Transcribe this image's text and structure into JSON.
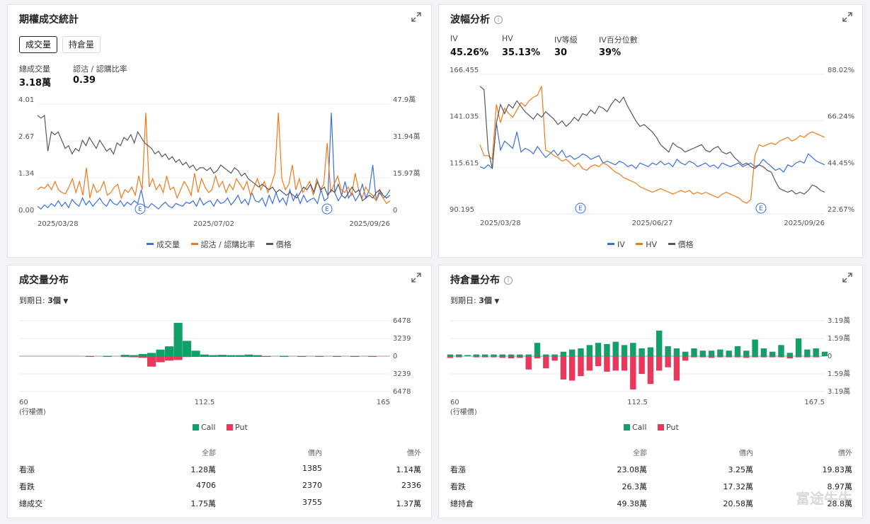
{
  "panels": {
    "stats": {
      "title": "期權成交統計",
      "tabs": [
        "成交量",
        "持倉量"
      ],
      "active_tab": 0,
      "stat1_label": "總成交量",
      "stat1_value": "3.18萬",
      "stat2_label": "認沽 / 認購比率",
      "stat2_value": "0.39",
      "legend": [
        "成交量",
        "認沽 / 認購比率",
        "價格"
      ]
    },
    "vol": {
      "title": "波幅分析",
      "stats": [
        {
          "label": "IV",
          "value": "45.26%"
        },
        {
          "label": "HV",
          "value": "35.13%"
        },
        {
          "label": "IV等級",
          "value": "30"
        },
        {
          "label": "IV百分位數",
          "value": "39%"
        }
      ],
      "legend": [
        "IV",
        "HV",
        "價格"
      ]
    },
    "volume_dist": {
      "title": "成交量分布",
      "expiry_label": "到期日:",
      "expiry_value": "3個",
      "legend": [
        "Call",
        "Put"
      ],
      "table": {
        "headers": [
          "",
          "全部",
          "價內",
          "價外"
        ],
        "rows": [
          [
            "看漲",
            "1.28萬",
            "1385",
            "1.14萬"
          ],
          [
            "看跌",
            "4706",
            "2370",
            "2336"
          ],
          [
            "總成交",
            "1.75萬",
            "3755",
            "1.37萬"
          ]
        ]
      }
    },
    "oi_dist": {
      "title": "持倉量分布",
      "expiry_label": "到期日:",
      "expiry_value": "3個",
      "legend": [
        "Call",
        "Put"
      ],
      "table": {
        "headers": [
          "",
          "全部",
          "價內",
          "價外"
        ],
        "rows": [
          [
            "看漲",
            "23.08萬",
            "3.25萬",
            "19.83萬"
          ],
          [
            "看跌",
            "26.3萬",
            "17.32萬",
            "8.97萬"
          ],
          [
            "總持倉",
            "49.38萬",
            "20.58萬",
            "28.8萬"
          ]
        ]
      }
    }
  },
  "watermark": "富途牛牛",
  "colors": {
    "blue": "#3a6fe0",
    "orange": "#ef7a1a",
    "gray": "#55585f",
    "call": "#12a06a",
    "put": "#e8385b"
  },
  "chart_data": [
    {
      "type": "line",
      "title": "期權成交統計",
      "x_ticks": [
        "2025/03/28",
        "2025/07/02",
        "2025/09/26"
      ],
      "y_left_ticks": [
        "4.01",
        "2.67",
        "1.34",
        "0.00"
      ],
      "y_right_ticks": [
        "47.9萬",
        "31.94萬",
        "15.97萬",
        "0"
      ],
      "ylim_left": [
        0,
        4.01
      ],
      "events": [
        "E",
        "E",
        "E"
      ],
      "series": [
        {
          "name": "成交量",
          "color": "#3a6fe0",
          "values": [
            0.3,
            0.2,
            0.35,
            0.25,
            0.4,
            0.3,
            0.5,
            0.3,
            0.45,
            0.25,
            0.55,
            0.4,
            0.3,
            0.6,
            0.35,
            0.5,
            0.3,
            0.45,
            0.6,
            0.4,
            0.3,
            0.55,
            0.4,
            0.35,
            0.5,
            0.3,
            0.45,
            0.35,
            0.5,
            0.4,
            0.9,
            0.3,
            0.25,
            0.4,
            0.3,
            0.2,
            0.35,
            0.45,
            0.3,
            0.25,
            0.4,
            0.35,
            0.3,
            0.45,
            0.4,
            0.5,
            0.3,
            0.6,
            0.35,
            0.45,
            0.5,
            0.3,
            0.55,
            0.4,
            0.45,
            0.6,
            0.35,
            0.5,
            0.7,
            0.4,
            0.55,
            0.35,
            0.8,
            0.5,
            0.45,
            0.6,
            0.3,
            0.7,
            0.4,
            0.8,
            0.45,
            0.6,
            0.35,
            0.9,
            0.5,
            0.75,
            0.4,
            0.7,
            0.45,
            0.55,
            0.6,
            0.4,
            0.9,
            0.5,
            0.6,
            3.7,
            0.8,
            0.5,
            0.7,
            1.2,
            0.6,
            0.8,
            0.5,
            0.7,
            1.1,
            0.6,
            0.9,
            1.8,
            0.5,
            0.8,
            0.6,
            0.7,
            0.9
          ]
        },
        {
          "name": "認沽 / 認購比率",
          "color": "#ef7a1a",
          "values": [
            0.9,
            1.0,
            0.95,
            1.1,
            0.9,
            1.2,
            0.9,
            0.8,
            0.75,
            1.0,
            1.3,
            0.8,
            1.2,
            0.7,
            1.7,
            0.6,
            1.1,
            0.8,
            0.9,
            1.2,
            0.7,
            0.8,
            1.0,
            1.1,
            0.6,
            0.9,
            0.8,
            1.0,
            0.7,
            1.4,
            0.9,
            3.7,
            1.0,
            1.3,
            0.9,
            1.1,
            0.8,
            1.4,
            0.9,
            1.0,
            0.6,
            0.9,
            1.2,
            1.0,
            0.7,
            1.5,
            0.8,
            1.3,
            1.0,
            0.8,
            0.9,
            1.4,
            1.0,
            1.2,
            0.8,
            1.1,
            0.9,
            1.3,
            1.1,
            0.9,
            1.2,
            0.7,
            1.0,
            1.3,
            0.9,
            1.2,
            0.8,
            1.1,
            1.5,
            3.7,
            1.3,
            0.9,
            1.1,
            1.8,
            0.9,
            1.3,
            0.8,
            1.0,
            1.2,
            0.7,
            1.3,
            0.9,
            1.1,
            2.6,
            0.8,
            1.1,
            1.4,
            0.9,
            0.8,
            1.0,
            0.7,
            1.5,
            0.9,
            0.6,
            1.0,
            0.8,
            0.7,
            0.5,
            0.9,
            0.6,
            0.4,
            0.5
          ]
        },
        {
          "name": "價格",
          "color": "#55585f",
          "values": [
            3.6,
            3.5,
            3.6,
            2.3,
            3.0,
            2.9,
            3.0,
            2.7,
            2.4,
            2.5,
            2.2,
            2.4,
            2.3,
            2.7,
            2.5,
            2.8,
            2.6,
            2.4,
            2.7,
            2.5,
            2.3,
            2.4,
            2.2,
            2.6,
            2.5,
            2.8,
            2.7,
            2.9,
            2.6,
            3.0,
            2.8,
            2.6,
            2.5,
            2.4,
            2.2,
            2.3,
            2.1,
            2.2,
            2.0,
            2.1,
            1.9,
            2.0,
            1.8,
            1.9,
            1.7,
            1.8,
            1.6,
            1.7,
            1.7,
            1.6,
            1.7,
            1.5,
            1.6,
            1.8,
            1.7,
            1.6,
            1.5,
            1.7,
            1.6,
            1.4,
            1.5,
            1.3,
            1.2,
            1.1,
            1.0,
            1.1,
            1.0,
            0.9,
            1.0,
            0.8,
            0.9,
            0.8,
            0.7,
            0.8,
            0.7,
            0.6,
            0.8,
            1.0,
            0.9,
            1.1,
            0.8,
            1.2,
            0.9,
            1.0,
            0.7,
            0.9,
            0.8,
            1.1,
            0.7,
            0.6,
            0.8,
            1.0,
            0.8,
            0.9,
            0.5,
            0.6,
            0.7,
            0.6,
            0.8,
            0.9,
            0.7,
            0.6,
            0.7
          ]
        }
      ]
    },
    {
      "type": "line",
      "title": "波幅分析",
      "x_ticks": [
        "2025/03/28",
        "2025/06/27",
        "2025/09/26"
      ],
      "y_left_ticks": [
        "166.455",
        "141.035",
        "115.615",
        "90.195"
      ],
      "y_right_ticks": [
        "88.02%",
        "66.24%",
        "44.45%",
        "22.67%"
      ],
      "ylim_left": [
        90.195,
        166.455
      ],
      "events": [
        "E",
        "E"
      ],
      "series": [
        {
          "name": "IV",
          "color": "#3a6fe0",
          "values": [
            116,
            115,
            117,
            115,
            140,
            125,
            130,
            128,
            126,
            135,
            124,
            126,
            125,
            123,
            127,
            124,
            121,
            123,
            125,
            122,
            125,
            121,
            122,
            120,
            121,
            123,
            122,
            120,
            121,
            122,
            118,
            119,
            118,
            117,
            119,
            118,
            116,
            117,
            115,
            118,
            117,
            116,
            118,
            117,
            119,
            117,
            118,
            116,
            120,
            118,
            117,
            119,
            118,
            116,
            117,
            118,
            116,
            117,
            115,
            118,
            117,
            116,
            117,
            118,
            116,
            117,
            118,
            116,
            117,
            120,
            118,
            116,
            114,
            115,
            113,
            117,
            116,
            118,
            119,
            118,
            123,
            121,
            119,
            118,
            117
          ]
        },
        {
          "name": "HV",
          "color": "#ef7a1a",
          "values": [
            128,
            122,
            122,
            120,
            150,
            140,
            148,
            145,
            143,
            147,
            151,
            149,
            152,
            154,
            155,
            160,
            125,
            124,
            122,
            121,
            119,
            120,
            118,
            116,
            118,
            115,
            114,
            116,
            117,
            116,
            118,
            117,
            115,
            113,
            112,
            110,
            109,
            108,
            107,
            105,
            104,
            103,
            102,
            103,
            104,
            103,
            102,
            101,
            102,
            103,
            102,
            103,
            101,
            102,
            101,
            102,
            101,
            100,
            99,
            101,
            102,
            101,
            100,
            99,
            97,
            96,
            98,
            122,
            128,
            127,
            128,
            129,
            128,
            130,
            131,
            132,
            130,
            131,
            133,
            132,
            134,
            135,
            134,
            133,
            132
          ]
        },
        {
          "name": "價格",
          "color": "#55585f",
          "values": [
            160,
            158,
            125,
            115,
            140,
            150,
            145,
            150,
            148,
            152,
            149,
            146,
            144,
            142,
            145,
            143,
            146,
            144,
            142,
            139,
            141,
            138,
            140,
            143,
            141,
            145,
            144,
            147,
            145,
            149,
            148,
            146,
            150,
            153,
            151,
            154,
            149,
            145,
            141,
            138,
            139,
            137,
            135,
            132,
            128,
            126,
            124,
            129,
            127,
            126,
            124,
            125,
            126,
            127,
            128,
            125,
            124,
            126,
            127,
            124,
            123,
            124,
            121,
            119,
            117,
            118,
            116,
            115,
            117,
            116,
            114,
            113,
            108,
            104,
            103,
            102,
            103,
            101,
            102,
            101,
            103,
            106,
            105,
            103,
            102
          ]
        }
      ]
    },
    {
      "type": "bar",
      "title": "成交量分布",
      "x_ticks": [
        "60",
        "112.5",
        "165"
      ],
      "x_label": "(行權價)",
      "y_ticks": [
        "6478",
        "3239",
        "0",
        "3239",
        "6478"
      ],
      "ylim": [
        -6478,
        6478
      ],
      "categories": [
        60,
        65,
        70,
        75,
        80,
        85,
        90,
        92.5,
        95,
        97.5,
        100,
        102.5,
        105,
        107.5,
        110,
        112.5,
        115,
        117.5,
        120,
        122.5,
        125,
        127.5,
        130,
        135,
        140,
        145,
        150,
        155,
        160,
        165
      ],
      "series": [
        {
          "name": "Call",
          "color": "#12a06a",
          "values": [
            0,
            0,
            0,
            0,
            0,
            60,
            250,
            200,
            400,
            600,
            1200,
            1800,
            6100,
            2800,
            1000,
            300,
            200,
            250,
            200,
            200,
            300,
            200,
            0,
            60,
            0,
            0,
            0,
            0,
            0,
            0
          ]
        },
        {
          "name": "Put",
          "color": "#e8385b",
          "values": [
            0,
            0,
            0,
            0,
            -100,
            -60,
            -150,
            -200,
            -300,
            -1900,
            -1100,
            -800,
            -700,
            -150,
            -50,
            -60,
            -100,
            -100,
            -100,
            -60,
            -60,
            -80,
            -60,
            -60,
            -60,
            -100,
            -60,
            -60,
            -60,
            0
          ]
        }
      ]
    },
    {
      "type": "bar",
      "title": "持倉量分布",
      "x_ticks": [
        "60",
        "112.5",
        "167.5"
      ],
      "x_label": "(行權價)",
      "y_ticks": [
        "3.19萬",
        "1.59萬",
        "0",
        "1.59萬",
        "3.19萬"
      ],
      "ylim": [
        -3.19,
        3.19
      ],
      "categories": [
        60,
        62.5,
        65,
        67.5,
        70,
        72.5,
        75,
        77.5,
        80,
        82.5,
        85,
        87.5,
        90,
        92.5,
        95,
        97.5,
        100,
        102.5,
        105,
        107.5,
        110,
        112.5,
        115,
        117.5,
        120,
        122.5,
        125,
        127.5,
        130,
        132.5,
        135,
        137.5,
        140,
        142.5,
        145,
        147.5,
        150,
        152.5,
        155,
        157.5,
        160,
        162.5,
        165,
        167.5
      ],
      "series": [
        {
          "name": "Call",
          "color": "#12a06a",
          "values": [
            0.15,
            0.15,
            0.1,
            0.15,
            0.15,
            0.15,
            0.15,
            0.15,
            0.15,
            0.15,
            1.2,
            0.15,
            0.15,
            0.4,
            0.6,
            0.7,
            1.0,
            1.2,
            1.1,
            1.3,
            1.0,
            1.2,
            0.7,
            0.8,
            2.3,
            0.9,
            0.7,
            0.4,
            0.7,
            0.5,
            0.5,
            0.6,
            0.5,
            0.9,
            0.5,
            1.5,
            0.7,
            0.4,
            1.0,
            0.3,
            1.6,
            0.6,
            0.7,
            0.4
          ]
        },
        {
          "name": "Put",
          "color": "#e8385b",
          "values": [
            -0.15,
            -0.1,
            0,
            -0.1,
            -0.1,
            -0.1,
            -0.15,
            -0.2,
            -0.15,
            -1.2,
            -0.2,
            -1.1,
            -0.4,
            -2.1,
            -2.2,
            -1.8,
            -1.3,
            -0.9,
            -1.4,
            -1.3,
            -1.3,
            -3.0,
            -1.6,
            -2.5,
            -1.3,
            -1.0,
            -2.2,
            -0.4,
            -0.1,
            -0.1,
            -0.15,
            -0.1,
            -0.1,
            -0.1,
            -0.15,
            -0.1,
            -0.1,
            -0.1,
            -0.1,
            -0.2,
            -0.1,
            -0.1,
            -0.1,
            0
          ]
        }
      ]
    }
  ]
}
